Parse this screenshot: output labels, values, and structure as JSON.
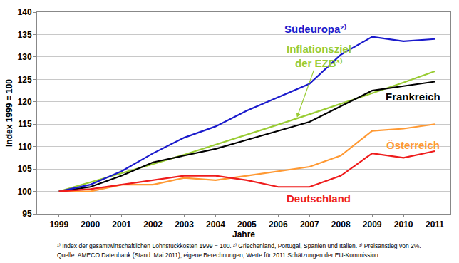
{
  "chart_data": {
    "type": "line",
    "y_title": "Index 1999 = 100",
    "x_title": "Jahre",
    "x": [
      1999,
      2000,
      2001,
      2002,
      2003,
      2004,
      2005,
      2006,
      2007,
      2008,
      2009,
      2010,
      2011
    ],
    "xlim": [
      1998.3,
      2011.5
    ],
    "xticks": [
      1999,
      2000,
      2001,
      2002,
      2003,
      2004,
      2005,
      2006,
      2007,
      2008,
      2009,
      2010,
      2011
    ],
    "ylim": [
      95,
      140
    ],
    "yticks": [
      95,
      100,
      105,
      110,
      115,
      120,
      125,
      130,
      135,
      140
    ],
    "grid": true,
    "series": [
      {
        "name": "Inflationsziel der EZB³⁾",
        "color": "#99cc33",
        "values": [
          100,
          102,
          104,
          106.1,
          108.2,
          110.4,
          112.6,
          114.9,
          117.2,
          119.5,
          121.9,
          124.3,
          126.8
        ]
      },
      {
        "name": "Frankreich",
        "color": "#000000",
        "values": [
          100,
          101,
          103.5,
          106.5,
          108,
          109.5,
          111.5,
          113.5,
          115.5,
          119,
          122.5,
          123.5,
          124.5
        ]
      },
      {
        "name": "Südeuropa²⁾",
        "color": "#1a1acc",
        "values": [
          100,
          101.5,
          104.5,
          108.5,
          112,
          114.5,
          118,
          121,
          124,
          130.5,
          134.5,
          133.5,
          134
        ]
      },
      {
        "name": "Österreich",
        "color": "#ff9933",
        "values": [
          100,
          100,
          101.5,
          101.5,
          103,
          102.5,
          103.5,
          104.5,
          105.5,
          108,
          113.5,
          114,
          115
        ]
      },
      {
        "name": "Deutschland",
        "color": "#ee1c1c",
        "values": [
          100,
          100.5,
          101.5,
          102.5,
          103.5,
          103.5,
          102.5,
          101,
          101,
          103.5,
          108.5,
          107.5,
          109
        ]
      }
    ],
    "footnotes": [
      "¹⁾ Index der gesamtwirtschaftlichen Lohnstückkosten 1999 = 100. ²⁾ Griechenland, Portugal, Spanien und Italien. ³⁾ Preisanstieg von 2%.",
      "Quelle: AMECO Datenbank (Stand: Mai 2011), eigene Berechnungen; Werte für 2011 Schätzungen der EU-Kommission."
    ]
  }
}
